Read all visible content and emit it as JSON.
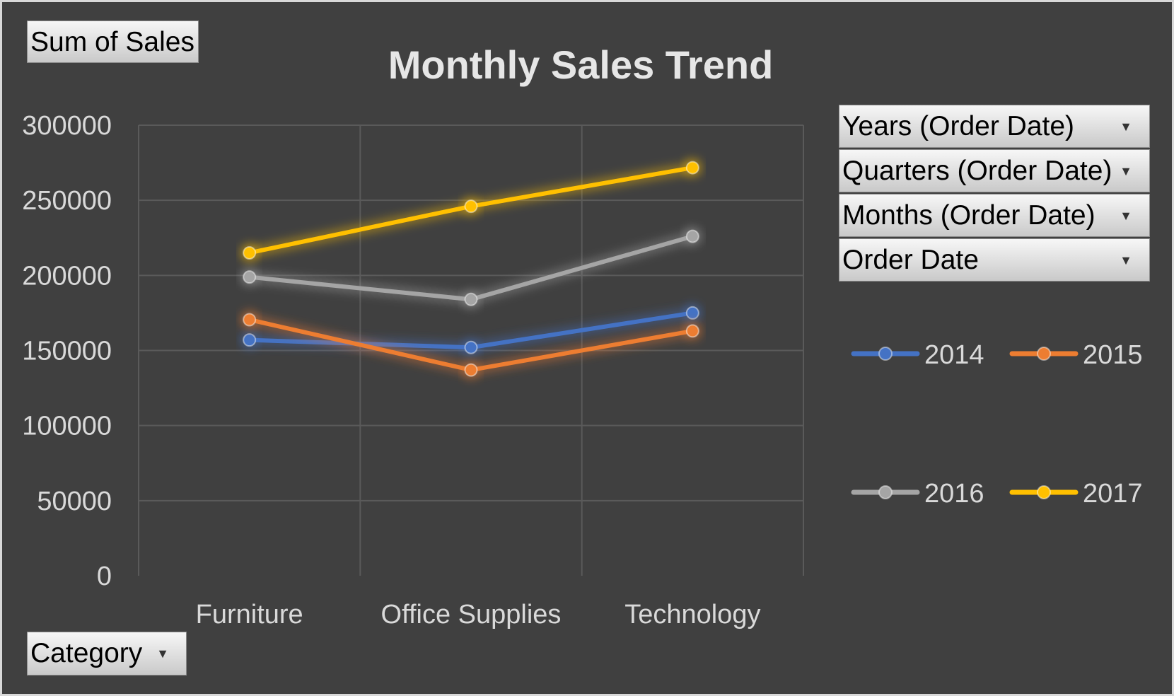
{
  "pivot": {
    "value_field": "Sum of Sales",
    "axis_field": "Category",
    "legend_fields": [
      "Years (Order Date)",
      "Quarters (Order Date)",
      "Months (Order Date)",
      "Order Date"
    ]
  },
  "colors": {
    "background": "#404040",
    "grid": "#5a5a5a",
    "text": "#d9d9d9",
    "title": "#e6e6e6"
  },
  "icons": {
    "dropdown": "dropdown-arrow-icon"
  },
  "chart_data": {
    "type": "line",
    "title": "Monthly Sales Trend",
    "xlabel": "",
    "ylabel": "",
    "categories": [
      "Furniture",
      "Office Supplies",
      "Technology"
    ],
    "ylim": [
      0,
      300000
    ],
    "yticks": [
      "300000",
      "250000",
      "200000",
      "150000",
      "100000",
      "50000",
      "0"
    ],
    "grid": true,
    "legend_position": "right",
    "series": [
      {
        "name": "2014",
        "color": "#4472c4",
        "values": [
          157000,
          152000,
          175000
        ]
      },
      {
        "name": "2015",
        "color": "#ed7d31",
        "values": [
          170500,
          137000,
          163000
        ]
      },
      {
        "name": "2016",
        "color": "#a5a5a5",
        "values": [
          198900,
          184000,
          226000
        ]
      },
      {
        "name": "2017",
        "color": "#ffc000",
        "values": [
          215000,
          246000,
          271700
        ]
      }
    ]
  }
}
